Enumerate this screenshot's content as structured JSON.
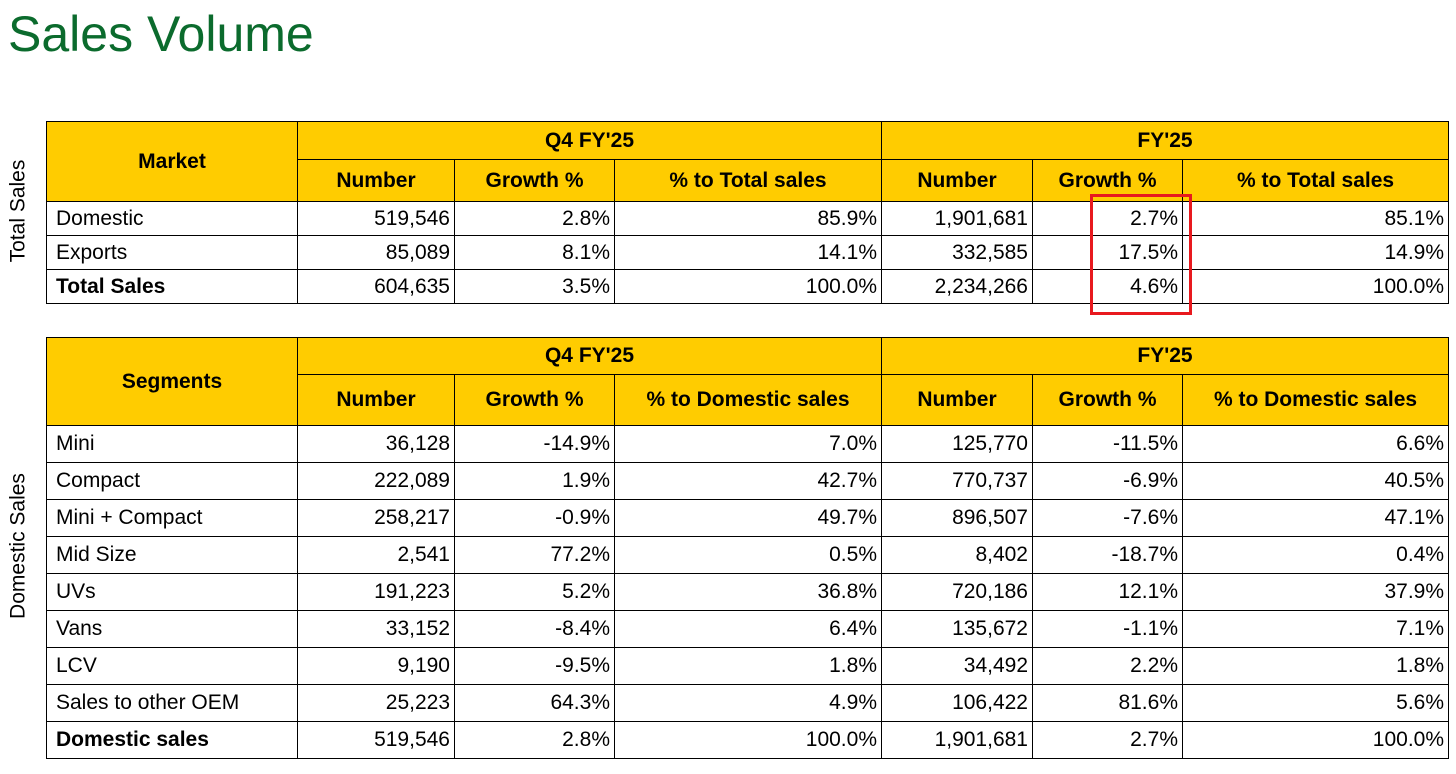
{
  "page": {
    "title": "Sales Volume"
  },
  "total_sales": {
    "side_label": "Total Sales",
    "header": {
      "first_col": "Market",
      "group1": "Q4 FY'25",
      "group2": "FY'25",
      "cols": [
        "Number",
        "Growth %",
        "% to Total sales",
        "Number",
        "Growth %",
        "% to Total sales"
      ]
    },
    "rows": [
      {
        "label": "Domestic",
        "values": [
          "519,546",
          "2.8%",
          "85.9%",
          "1,901,681",
          "2.7%",
          "85.1%"
        ]
      },
      {
        "label": "Exports",
        "values": [
          "85,089",
          "8.1%",
          "14.1%",
          "332,585",
          "17.5%",
          "14.9%"
        ]
      },
      {
        "label": "Total Sales",
        "values": [
          "604,635",
          "3.5%",
          "100.0%",
          "2,234,266",
          "4.6%",
          "100.0%"
        ]
      }
    ]
  },
  "domestic_sales": {
    "side_label": "Domestic Sales",
    "header": {
      "first_col": "Segments",
      "group1": "Q4 FY'25",
      "group2": "FY'25",
      "cols": [
        "Number",
        "Growth %",
        "% to Domestic sales",
        "Number",
        "Growth %",
        "% to Domestic sales"
      ]
    },
    "rows": [
      {
        "label": "Mini",
        "values": [
          "36,128",
          "-14.9%",
          "7.0%",
          "125,770",
          "-11.5%",
          "6.6%"
        ]
      },
      {
        "label": "Compact",
        "values": [
          "222,089",
          "1.9%",
          "42.7%",
          "770,737",
          "-6.9%",
          "40.5%"
        ]
      },
      {
        "label": "Mini + Compact",
        "values": [
          "258,217",
          "-0.9%",
          "49.7%",
          "896,507",
          "-7.6%",
          "47.1%"
        ]
      },
      {
        "label": "Mid Size",
        "values": [
          "2,541",
          "77.2%",
          "0.5%",
          "8,402",
          "-18.7%",
          "0.4%"
        ]
      },
      {
        "label": "UVs",
        "values": [
          "191,223",
          "5.2%",
          "36.8%",
          "720,186",
          "12.1%",
          "37.9%"
        ]
      },
      {
        "label": "Vans",
        "values": [
          "33,152",
          "-8.4%",
          "6.4%",
          "135,672",
          "-1.1%",
          "7.1%"
        ]
      },
      {
        "label": "LCV",
        "values": [
          "9,190",
          "-9.5%",
          "1.8%",
          "34,492",
          "2.2%",
          "1.8%"
        ]
      },
      {
        "label": "Sales to other OEM",
        "values": [
          "25,223",
          "64.3%",
          "4.9%",
          "106,422",
          "81.6%",
          "5.6%"
        ]
      },
      {
        "label": "Domestic sales",
        "values": [
          "519,546",
          "2.8%",
          "100.0%",
          "1,901,681",
          "2.7%",
          "100.0%"
        ]
      }
    ]
  },
  "colors": {
    "header_bg": "#ffcc00",
    "title": "#0b6b2d",
    "highlight": "#e8191e"
  }
}
